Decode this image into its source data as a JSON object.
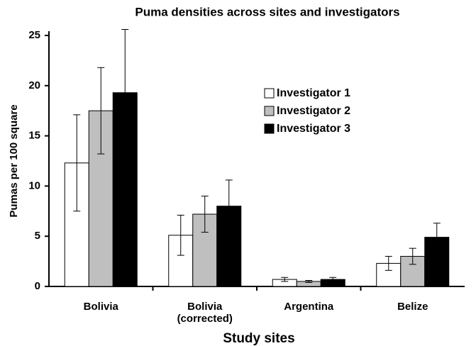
{
  "chart_data": {
    "type": "bar",
    "title": "Puma densities across sites and investigators",
    "xlabel": "Study sites",
    "ylabel": "Pumas per 100 square",
    "categories": [
      "Bolivia",
      "Bolivia (corrected)",
      "Argentina",
      "Belize"
    ],
    "series": [
      {
        "name": "Investigator 1",
        "color": "#ffffff",
        "values": [
          12.3,
          5.1,
          0.7,
          2.3
        ],
        "errors": [
          4.8,
          2.0,
          0.2,
          0.7
        ]
      },
      {
        "name": "Investigator 2",
        "color": "#bfbfbf",
        "values": [
          17.5,
          7.2,
          0.5,
          3.0
        ],
        "errors": [
          4.3,
          1.8,
          0.1,
          0.8
        ]
      },
      {
        "name": "Investigator 3",
        "color": "#000000",
        "values": [
          19.3,
          8.0,
          0.7,
          4.9
        ],
        "errors": [
          6.3,
          2.6,
          0.2,
          1.4
        ]
      }
    ],
    "ylim": [
      0,
      25
    ],
    "yticks": [
      0,
      5,
      10,
      15,
      20,
      25
    ],
    "grid": false,
    "legend": "upper right"
  }
}
